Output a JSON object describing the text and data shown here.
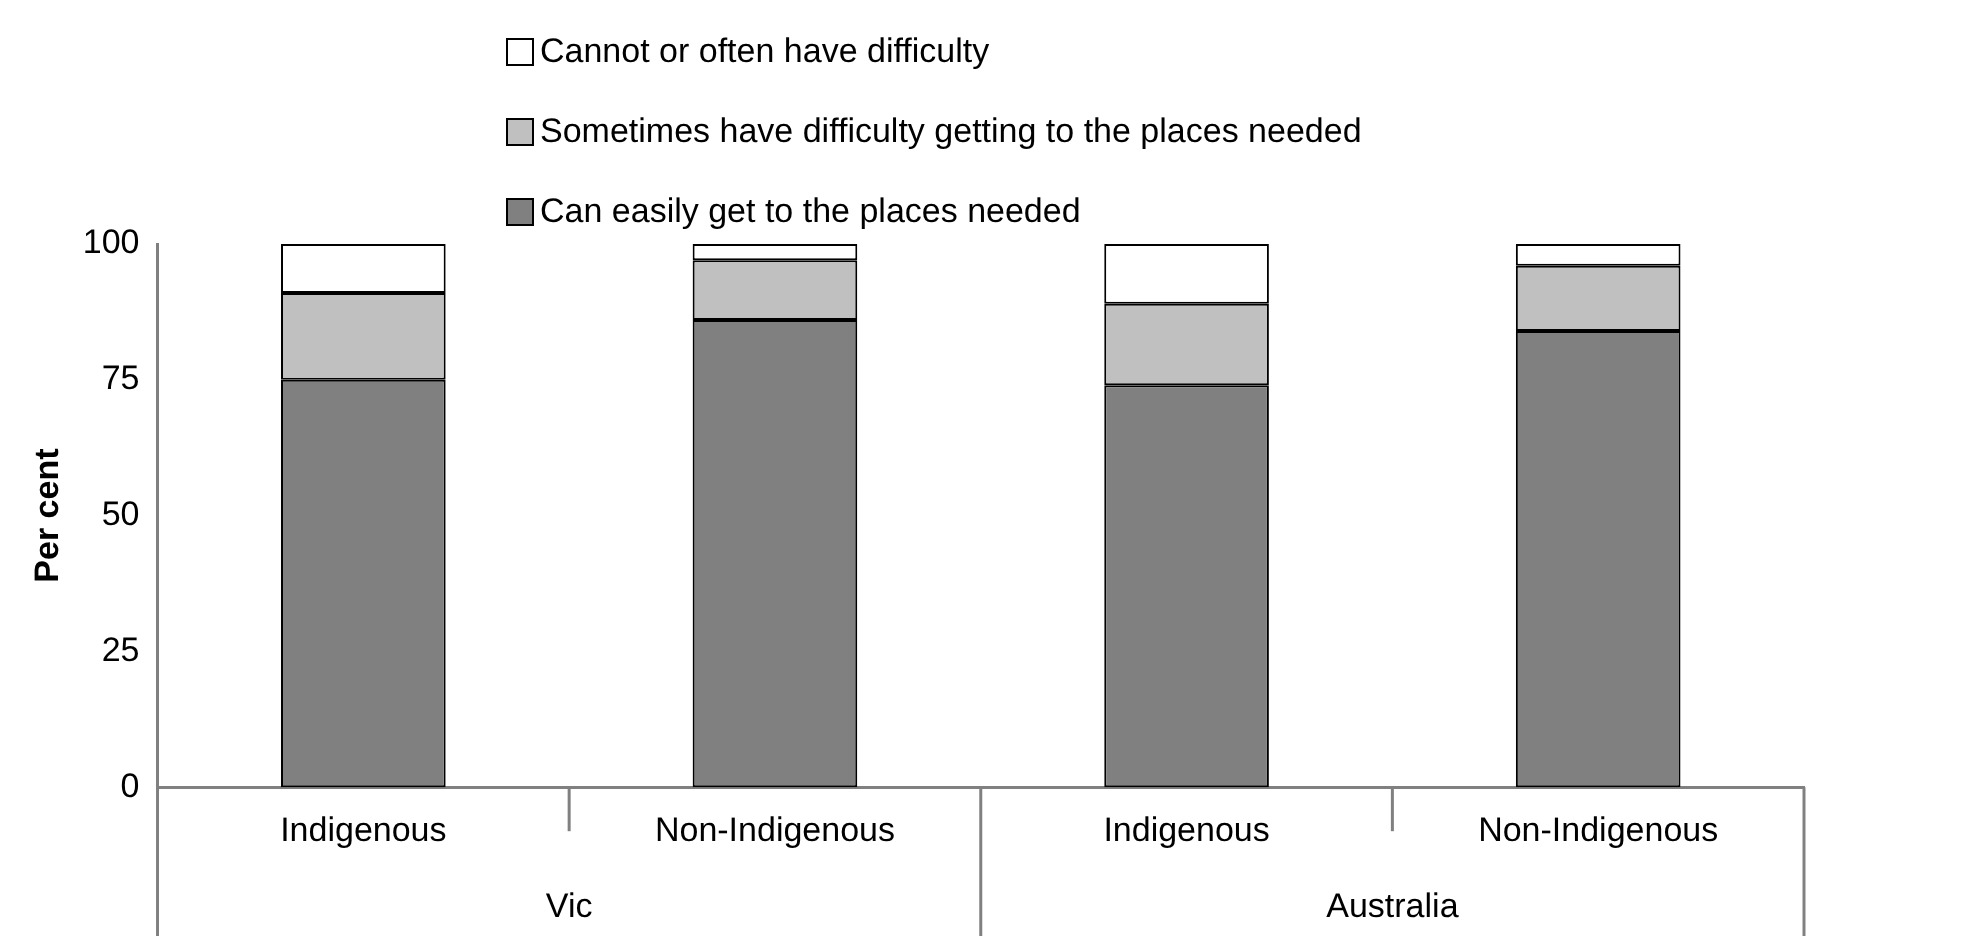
{
  "chart_data": {
    "type": "bar",
    "stacked": true,
    "ylabel": "Per cent",
    "categories": [
      "Indigenous",
      "Non-Indigenous",
      "Indigenous",
      "Non-Indigenous"
    ],
    "series": [
      {
        "name": "Can easily get to the places needed",
        "color": "#808080",
        "values": [
          75,
          86,
          74,
          84
        ]
      },
      {
        "name": "Sometimes have difficulty getting to the places needed",
        "color": "#c0c0c0",
        "values": [
          16,
          11,
          15,
          12
        ]
      },
      {
        "name": "Cannot or often have difficulty",
        "color": "#ffffff",
        "values": [
          9,
          3,
          11,
          4
        ]
      }
    ],
    "ylim": [
      0,
      100
    ],
    "yticks": [
      0,
      25,
      50,
      75,
      100
    ],
    "grid": false,
    "legend": "top",
    "annotations": [
      "Vic",
      "Australia"
    ]
  }
}
